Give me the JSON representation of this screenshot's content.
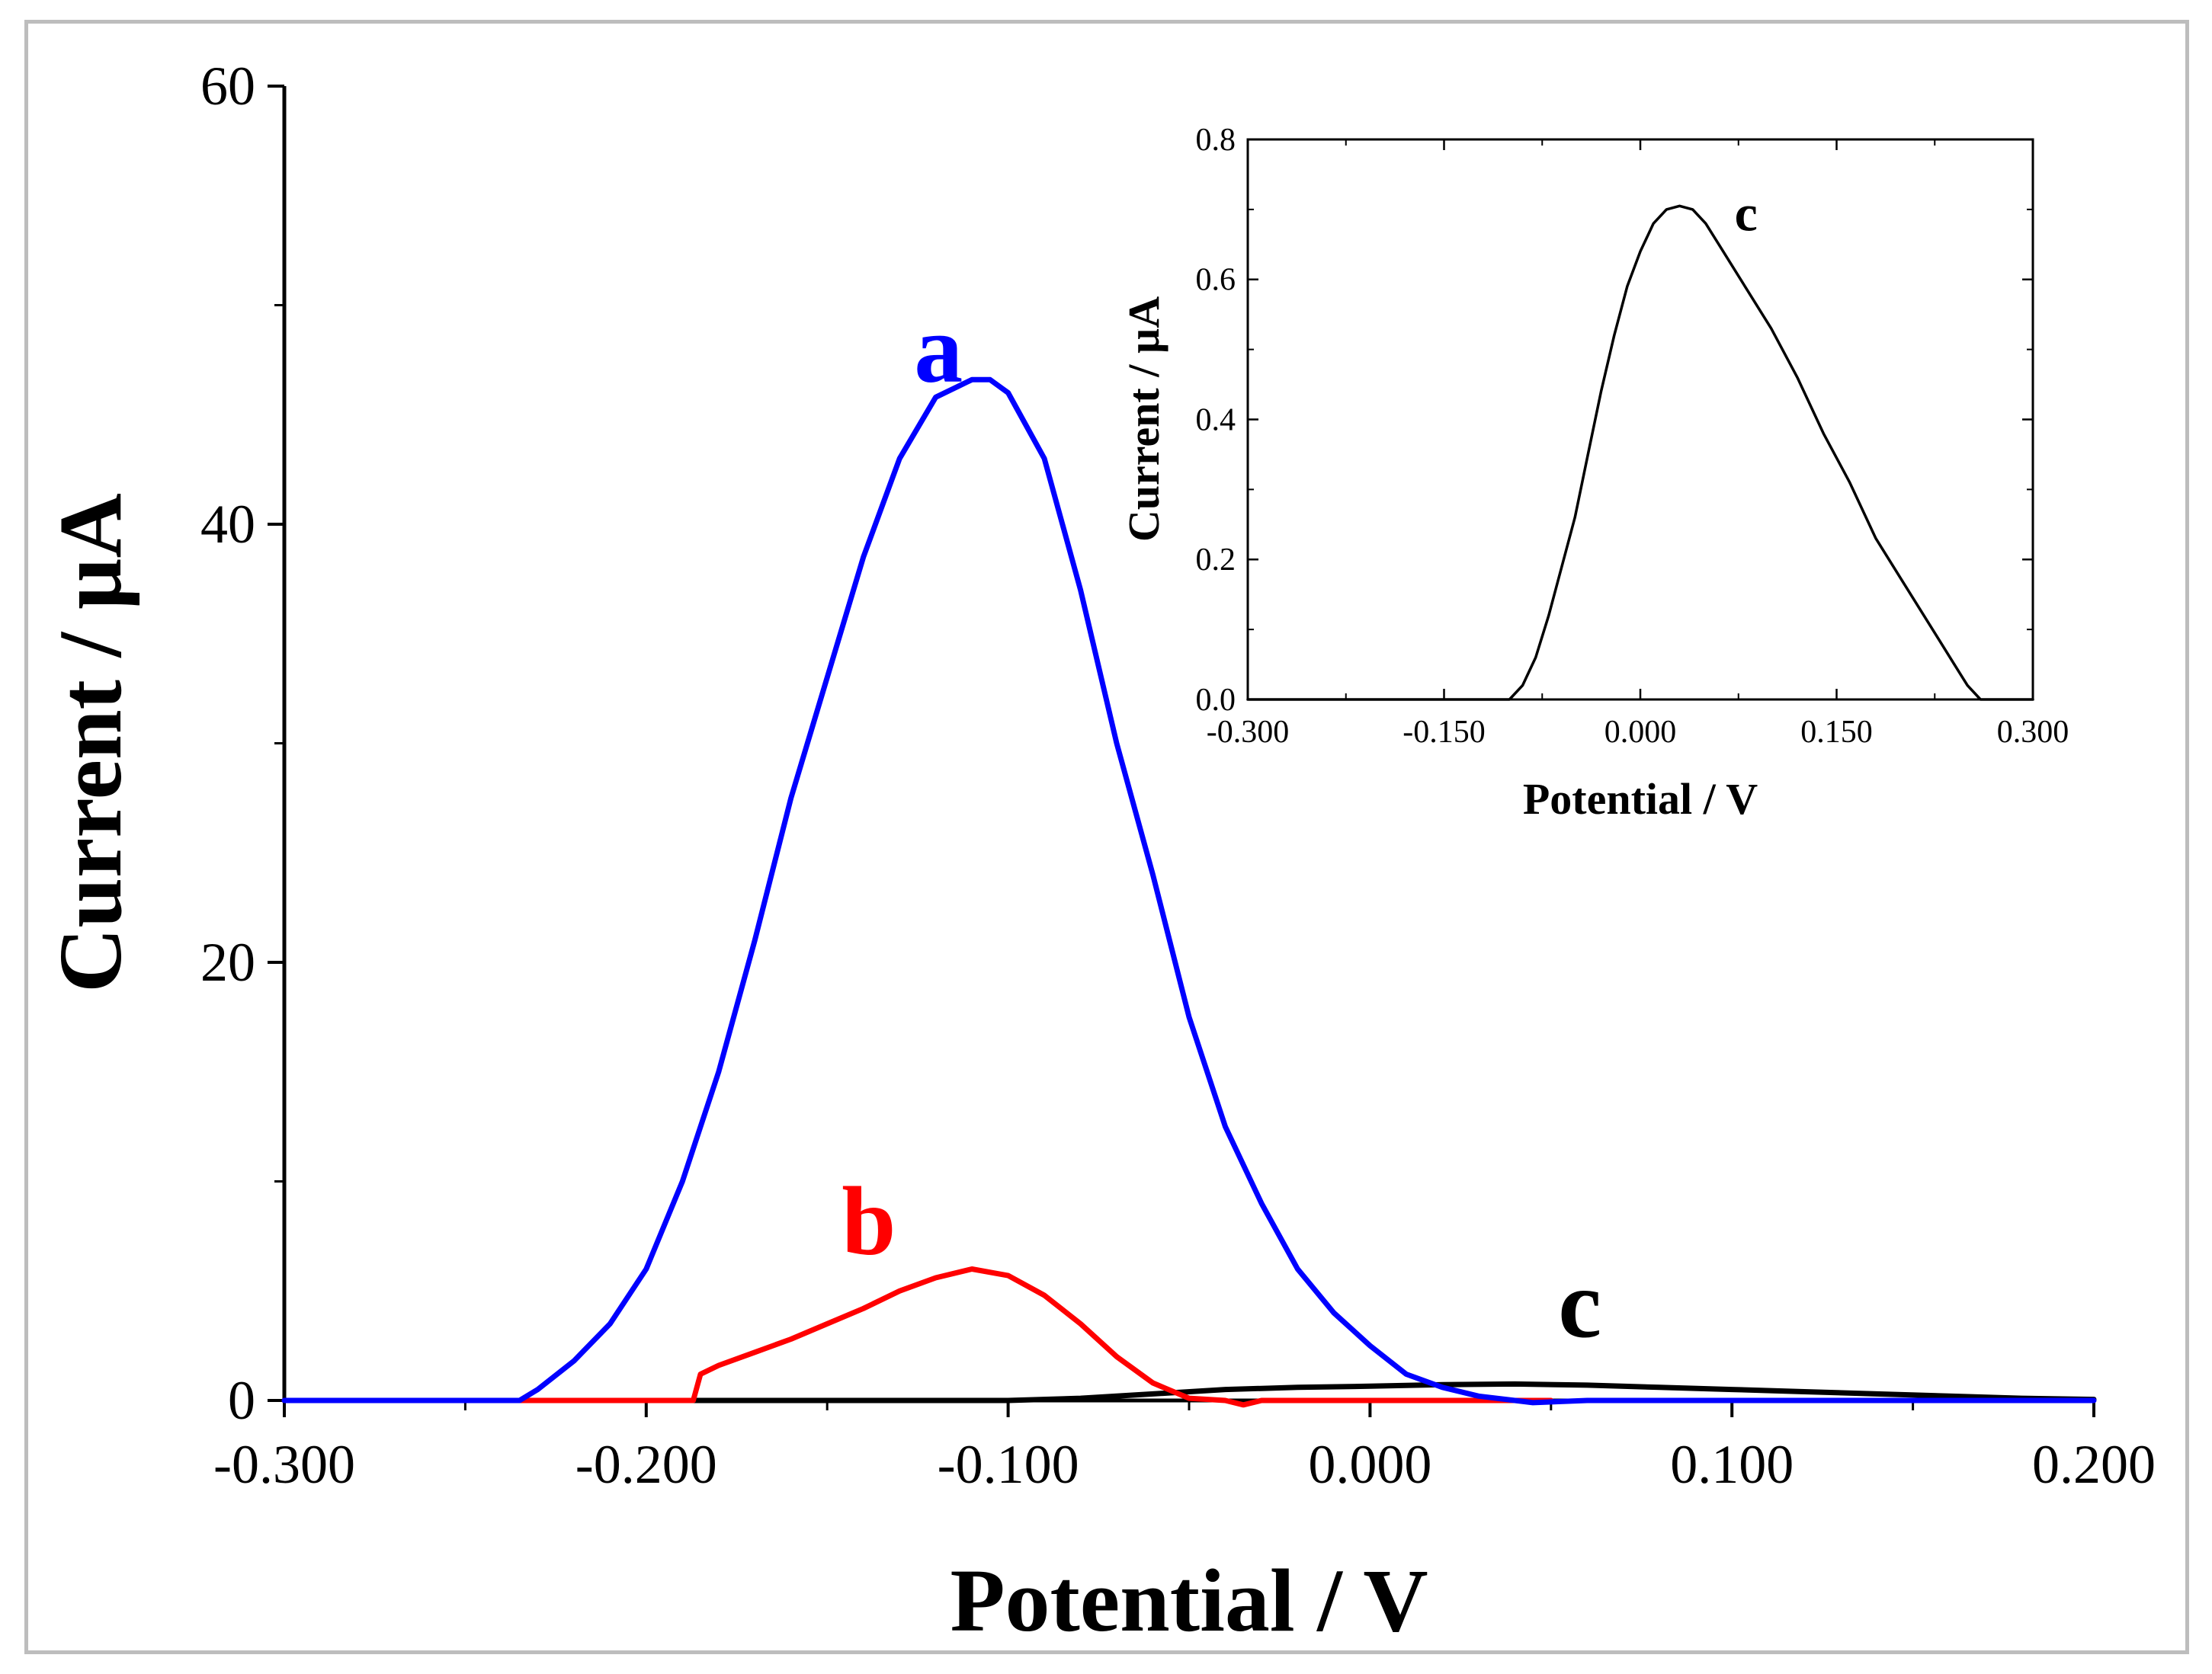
{
  "chart_data": [
    {
      "id": "main",
      "type": "line",
      "xlabel": "Potential / V",
      "ylabel": "Current / µA",
      "xlim": [
        -0.3,
        0.2
      ],
      "ylim": [
        0,
        60
      ],
      "xticks": [
        -0.3,
        -0.2,
        -0.1,
        0.0,
        0.1,
        0.2
      ],
      "xtick_labels": [
        "-0.300",
        "-0.200",
        "-0.100",
        "0.000",
        "0.100",
        "0.200"
      ],
      "yticks": [
        0,
        20,
        40,
        60
      ],
      "ytick_labels": [
        "0",
        "20",
        "40",
        "60"
      ],
      "grid": false,
      "series": [
        {
          "name": "c",
          "label": "c",
          "color": "#000000",
          "x": [
            -0.3,
            -0.15,
            -0.1,
            -0.08,
            -0.06,
            -0.04,
            -0.02,
            0.0,
            0.02,
            0.04,
            0.06,
            0.08,
            0.1,
            0.12,
            0.14,
            0.16,
            0.18,
            0.2
          ],
          "y": [
            0.0,
            0.0,
            0.0,
            0.1,
            0.3,
            0.5,
            0.6,
            0.65,
            0.72,
            0.75,
            0.7,
            0.6,
            0.5,
            0.4,
            0.3,
            0.2,
            0.1,
            0.05
          ]
        },
        {
          "name": "b",
          "label": "b",
          "color": "#ff0000",
          "x": [
            -0.3,
            -0.187,
            -0.185,
            -0.18,
            -0.17,
            -0.16,
            -0.15,
            -0.14,
            -0.13,
            -0.12,
            -0.11,
            -0.1,
            -0.09,
            -0.08,
            -0.07,
            -0.06,
            -0.05,
            -0.04,
            -0.035,
            -0.03,
            -0.02,
            0.0,
            0.05
          ],
          "y": [
            0.0,
            0.0,
            1.2,
            1.6,
            2.2,
            2.8,
            3.5,
            4.2,
            5.0,
            5.6,
            6.0,
            5.7,
            4.8,
            3.5,
            2.0,
            0.8,
            0.1,
            0.0,
            -0.2,
            0.0,
            0.0,
            0.0,
            0.0
          ]
        },
        {
          "name": "a",
          "label": "a",
          "color": "#0000ff",
          "x": [
            -0.3,
            -0.235,
            -0.23,
            -0.22,
            -0.21,
            -0.2,
            -0.19,
            -0.18,
            -0.17,
            -0.16,
            -0.15,
            -0.14,
            -0.13,
            -0.12,
            -0.11,
            -0.105,
            -0.1,
            -0.09,
            -0.08,
            -0.07,
            -0.06,
            -0.05,
            -0.04,
            -0.03,
            -0.02,
            -0.01,
            0.0,
            0.01,
            0.02,
            0.03,
            0.04,
            0.045,
            0.06,
            0.1,
            0.2
          ],
          "y": [
            0.0,
            0.0,
            0.5,
            1.8,
            3.5,
            6.0,
            10.0,
            15.0,
            21.0,
            27.5,
            33.0,
            38.5,
            43.0,
            45.8,
            46.6,
            46.6,
            46.0,
            43.0,
            37.0,
            30.0,
            24.0,
            17.5,
            12.5,
            9.0,
            6.0,
            4.0,
            2.5,
            1.2,
            0.6,
            0.2,
            0.0,
            -0.1,
            0.0,
            0.0,
            0.0
          ]
        }
      ],
      "annotations": [
        {
          "text": "a",
          "color": "#0000ff",
          "x": -0.126,
          "y": 46.5
        },
        {
          "text": "b",
          "color": "#ff0000",
          "x": -0.146,
          "y": 6.7
        },
        {
          "text": "c",
          "color": "#000000",
          "x": 0.052,
          "y": 2.9
        }
      ]
    },
    {
      "id": "inset",
      "type": "line",
      "xlabel": "Potential / V",
      "ylabel": "Current / µA",
      "xlim": [
        -0.3,
        0.3
      ],
      "ylim": [
        0,
        0.8
      ],
      "xticks": [
        -0.3,
        -0.15,
        0.0,
        0.15,
        0.3
      ],
      "xtick_labels": [
        "-0.300",
        "-0.150",
        "0.000",
        "0.150",
        "0.300"
      ],
      "yticks": [
        0,
        0.2,
        0.4,
        0.6,
        0.8
      ],
      "ytick_labels": [
        "0.0",
        "0.2",
        "0.4",
        "0.6",
        "0.8"
      ],
      "grid": false,
      "series": [
        {
          "name": "c",
          "label": "c",
          "color": "#000000",
          "x": [
            -0.3,
            -0.1,
            -0.09,
            -0.08,
            -0.07,
            -0.06,
            -0.05,
            -0.04,
            -0.03,
            -0.02,
            -0.01,
            0.0,
            0.01,
            0.02,
            0.03,
            0.04,
            0.05,
            0.06,
            0.08,
            0.1,
            0.12,
            0.14,
            0.16,
            0.18,
            0.2,
            0.22,
            0.24,
            0.25,
            0.26,
            0.27,
            0.28,
            0.3
          ],
          "y": [
            0.0,
            0.0,
            0.02,
            0.06,
            0.12,
            0.19,
            0.26,
            0.35,
            0.44,
            0.52,
            0.59,
            0.64,
            0.68,
            0.7,
            0.705,
            0.7,
            0.68,
            0.65,
            0.59,
            0.53,
            0.46,
            0.38,
            0.31,
            0.23,
            0.17,
            0.11,
            0.05,
            0.02,
            0.0,
            0.0,
            0.0,
            0.0
          ]
        }
      ],
      "annotations": [
        {
          "text": "c",
          "color": "#000000",
          "x": 0.072,
          "y": 0.67
        }
      ]
    }
  ]
}
